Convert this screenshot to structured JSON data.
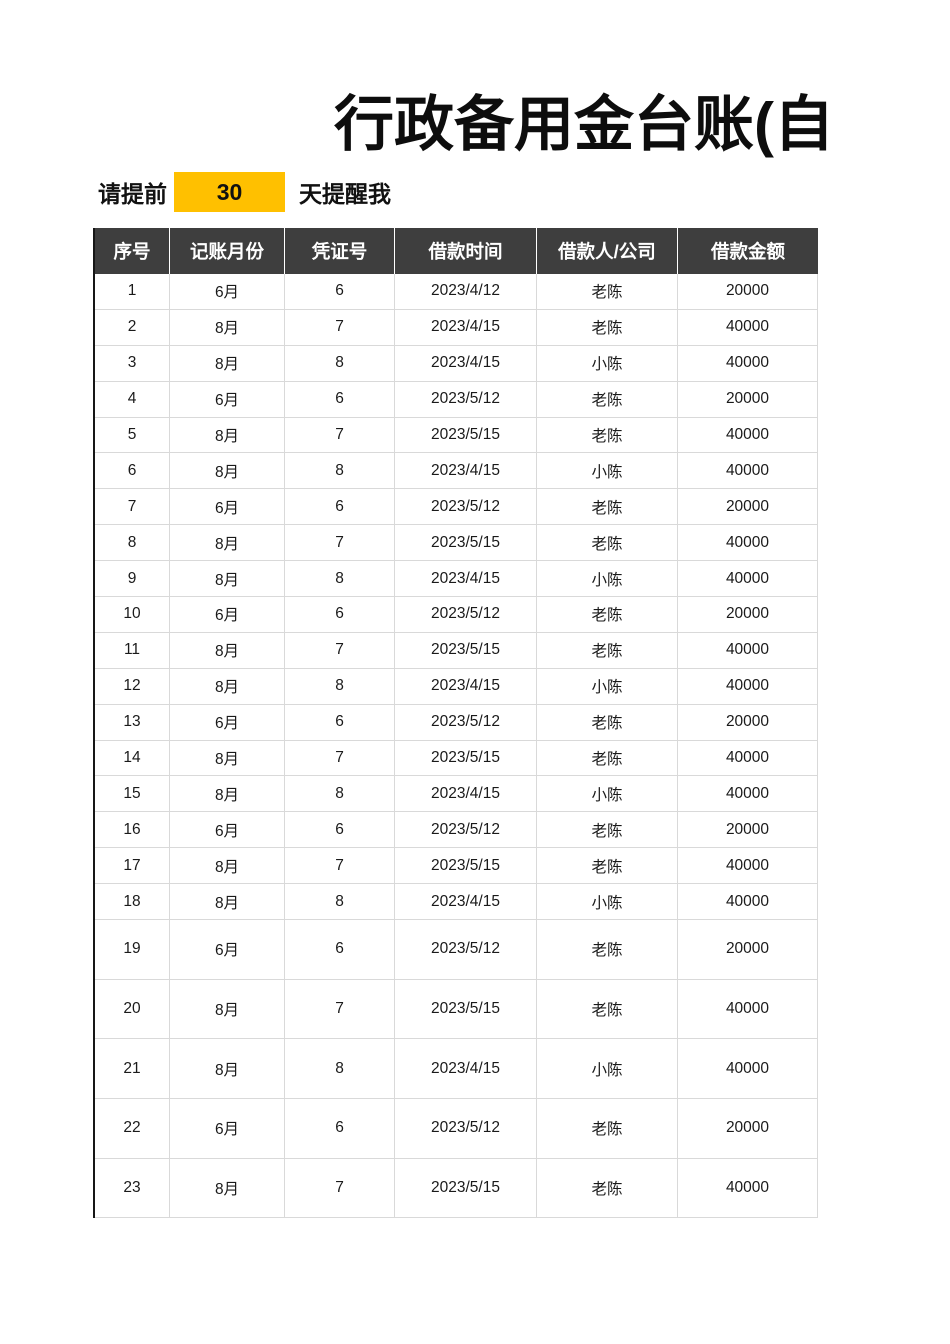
{
  "page": {
    "title": "行政备用金台账(自"
  },
  "reminder": {
    "prefix": "请提前",
    "days": "30",
    "suffix": "天提醒我"
  },
  "table": {
    "columns": [
      "序号",
      "记账月份",
      "凭证号",
      "借款时间",
      "借款人/公司",
      "借款金额"
    ],
    "rows": [
      [
        "1",
        "6月",
        "6",
        "2023/4/12",
        "老陈",
        "20000"
      ],
      [
        "2",
        "8月",
        "7",
        "2023/4/15",
        "老陈",
        "40000"
      ],
      [
        "3",
        "8月",
        "8",
        "2023/4/15",
        "小陈",
        "40000"
      ],
      [
        "4",
        "6月",
        "6",
        "2023/5/12",
        "老陈",
        "20000"
      ],
      [
        "5",
        "8月",
        "7",
        "2023/5/15",
        "老陈",
        "40000"
      ],
      [
        "6",
        "8月",
        "8",
        "2023/4/15",
        "小陈",
        "40000"
      ],
      [
        "7",
        "6月",
        "6",
        "2023/5/12",
        "老陈",
        "20000"
      ],
      [
        "8",
        "8月",
        "7",
        "2023/5/15",
        "老陈",
        "40000"
      ],
      [
        "9",
        "8月",
        "8",
        "2023/4/15",
        "小陈",
        "40000"
      ],
      [
        "10",
        "6月",
        "6",
        "2023/5/12",
        "老陈",
        "20000"
      ],
      [
        "11",
        "8月",
        "7",
        "2023/5/15",
        "老陈",
        "40000"
      ],
      [
        "12",
        "8月",
        "8",
        "2023/4/15",
        "小陈",
        "40000"
      ],
      [
        "13",
        "6月",
        "6",
        "2023/5/12",
        "老陈",
        "20000"
      ],
      [
        "14",
        "8月",
        "7",
        "2023/5/15",
        "老陈",
        "40000"
      ],
      [
        "15",
        "8月",
        "8",
        "2023/4/15",
        "小陈",
        "40000"
      ],
      [
        "16",
        "6月",
        "6",
        "2023/5/12",
        "老陈",
        "20000"
      ],
      [
        "17",
        "8月",
        "7",
        "2023/5/15",
        "老陈",
        "40000"
      ],
      [
        "18",
        "8月",
        "8",
        "2023/4/15",
        "小陈",
        "40000"
      ],
      [
        "19",
        "6月",
        "6",
        "2023/5/12",
        "老陈",
        "20000"
      ],
      [
        "20",
        "8月",
        "7",
        "2023/5/15",
        "老陈",
        "40000"
      ],
      [
        "21",
        "8月",
        "8",
        "2023/4/15",
        "小陈",
        "40000"
      ],
      [
        "22",
        "6月",
        "6",
        "2023/5/12",
        "老陈",
        "20000"
      ],
      [
        "23",
        "8月",
        "7",
        "2023/5/15",
        "老陈",
        "40000"
      ]
    ]
  },
  "colors": {
    "accent_yellow": "#FFC000",
    "header_bg": "#3E3E3E",
    "header_text": "#FFFFFF",
    "grid_line": "#D9D9D9",
    "table_left_border": "#161616"
  }
}
